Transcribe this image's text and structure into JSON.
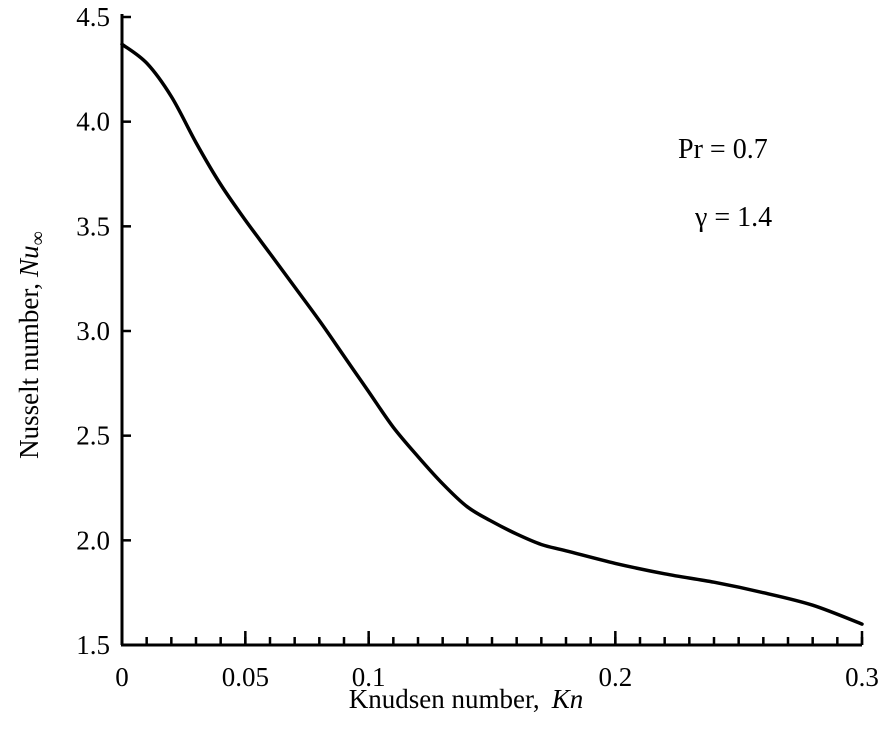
{
  "chart_data": {
    "type": "line",
    "title": "",
    "xlabel": "Knudsen number,",
    "xlabel_symbol": "Kn",
    "ylabel": "Nusselt number,",
    "ylabel_symbol": "Nu",
    "ylabel_subscript": "∞",
    "xlim": [
      0,
      0.3
    ],
    "ylim": [
      1.5,
      4.5
    ],
    "x_ticks": [
      0,
      0.05,
      0.1,
      0.2,
      0.3
    ],
    "x_tick_labels": [
      "0",
      "0.05",
      "0.1",
      "0.2",
      "0.3"
    ],
    "x_minor_step": 0.01,
    "y_ticks": [
      1.5,
      2.0,
      2.5,
      3.0,
      3.5,
      4.0,
      4.5
    ],
    "y_tick_labels": [
      "1.5",
      "2.0",
      "2.5",
      "3.0",
      "3.5",
      "4.0",
      "4.5"
    ],
    "grid": false,
    "annotations": [
      "Pr = 0.7",
      "γ = 1.4"
    ],
    "series": [
      {
        "x": [
          0,
          0.01,
          0.02,
          0.03,
          0.04,
          0.05,
          0.06,
          0.07,
          0.08,
          0.09,
          0.1,
          0.11,
          0.12,
          0.13,
          0.14,
          0.15,
          0.16,
          0.17,
          0.18,
          0.2,
          0.22,
          0.24,
          0.26,
          0.28,
          0.3
        ],
        "y": [
          4.37,
          4.28,
          4.12,
          3.9,
          3.7,
          3.53,
          3.37,
          3.21,
          3.05,
          2.88,
          2.71,
          2.54,
          2.4,
          2.27,
          2.16,
          2.09,
          2.03,
          1.98,
          1.95,
          1.89,
          1.84,
          1.8,
          1.75,
          1.69,
          1.6
        ]
      }
    ]
  }
}
